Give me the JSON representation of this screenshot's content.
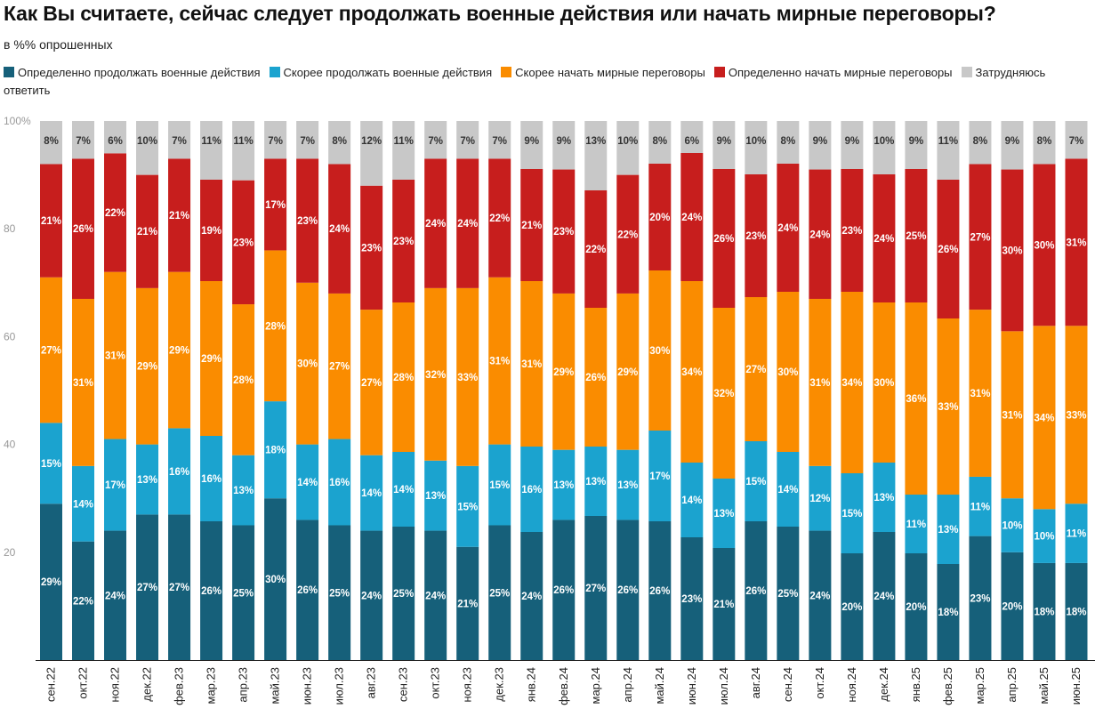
{
  "chart_data": {
    "type": "bar",
    "stacked": true,
    "title": "Как Вы считаете, сейчас следует продолжать военные действия или начать мирные переговоры?",
    "subtitle": "в %% опрошенных",
    "ylim": [
      0,
      100
    ],
    "yticks": [
      {
        "value": 20,
        "label": "20"
      },
      {
        "value": 40,
        "label": "40"
      },
      {
        "value": 60,
        "label": "60"
      },
      {
        "value": 80,
        "label": "80"
      },
      {
        "value": 100,
        "label": "100%"
      }
    ],
    "grid": false,
    "legend_position": "top",
    "categories": [
      "сен.22",
      "окт.22",
      "ноя.22",
      "дек.22",
      "фев.23",
      "мар.23",
      "апр.23",
      "май.23",
      "июн.23",
      "июл.23",
      "авг.23",
      "сен.23",
      "окт.23",
      "ноя.23",
      "дек.23",
      "янв.24",
      "фев.24",
      "мар.24",
      "апр.24",
      "май.24",
      "июн.24",
      "июл.24",
      "авг.24",
      "сен.24",
      "окт.24",
      "ноя.24",
      "дек.24",
      "янв.25",
      "фев.25",
      "мар.25",
      "апр.25",
      "май.25",
      "июн.25"
    ],
    "series": [
      {
        "name": "Определенно продолжать военные действия",
        "color": "#16607a",
        "label_color": "#ffffff",
        "values": [
          29,
          22,
          24,
          27,
          27,
          26,
          25,
          30,
          26,
          25,
          24,
          25,
          24,
          21,
          25,
          24,
          26,
          27,
          26,
          26,
          23,
          21,
          26,
          25,
          24,
          20,
          24,
          20,
          18,
          23,
          20,
          18,
          18
        ]
      },
      {
        "name": "Скорее продолжать военные действия",
        "color": "#1ba3cf",
        "label_color": "#ffffff",
        "values": [
          15,
          14,
          17,
          13,
          16,
          16,
          13,
          18,
          14,
          16,
          14,
          14,
          13,
          15,
          15,
          16,
          13,
          13,
          13,
          17,
          14,
          13,
          15,
          14,
          12,
          15,
          13,
          11,
          13,
          11,
          10,
          10,
          11
        ]
      },
      {
        "name": "Скорее начать мирные переговоры",
        "color": "#fa8c00",
        "label_color": "#ffffff",
        "values": [
          27,
          31,
          31,
          29,
          29,
          29,
          28,
          28,
          30,
          27,
          27,
          28,
          32,
          33,
          31,
          31,
          29,
          26,
          29,
          30,
          34,
          32,
          27,
          30,
          31,
          34,
          30,
          36,
          33,
          31,
          31,
          34,
          33
        ]
      },
      {
        "name": "Определенно начать мирные переговоры",
        "color": "#c71e1d",
        "label_color": "#ffffff",
        "values": [
          21,
          26,
          22,
          21,
          21,
          19,
          23,
          17,
          23,
          24,
          23,
          23,
          24,
          24,
          22,
          21,
          23,
          22,
          22,
          20,
          24,
          26,
          23,
          24,
          24,
          23,
          24,
          25,
          26,
          27,
          30,
          30,
          31
        ]
      },
      {
        "name": "Затрудняюсь ответить",
        "color": "#c8c8c8",
        "label_color": "#333333",
        "values": [
          8,
          7,
          6,
          10,
          7,
          11,
          11,
          7,
          7,
          8,
          12,
          11,
          7,
          7,
          7,
          9,
          9,
          13,
          10,
          8,
          6,
          9,
          10,
          8,
          9,
          9,
          10,
          9,
          11,
          8,
          9,
          8,
          7
        ]
      }
    ]
  }
}
